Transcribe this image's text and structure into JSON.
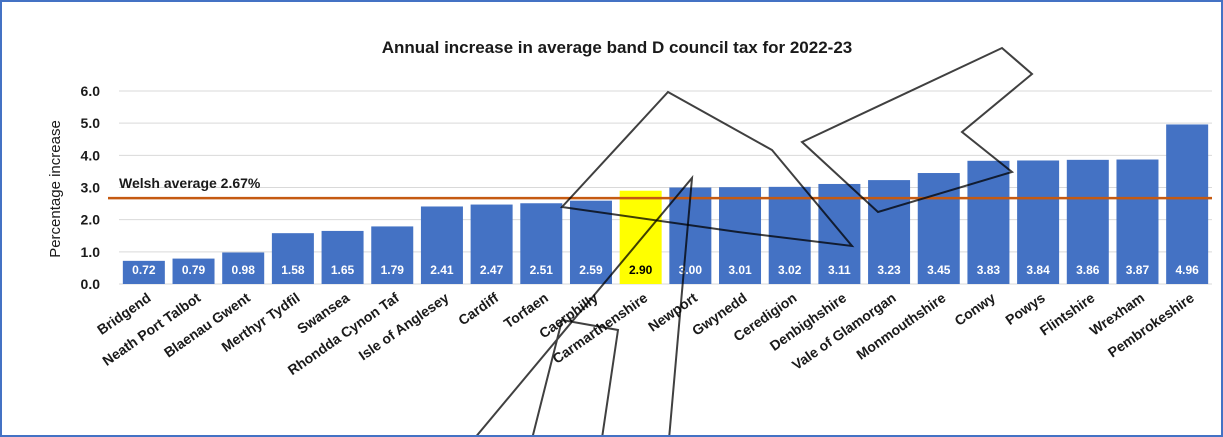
{
  "chart_data": {
    "type": "bar",
    "title": "Annual increase in average band D council tax for 2022-23",
    "ylabel": "Percentage increase",
    "xlabel": "",
    "ylim": [
      0,
      6
    ],
    "yticks": [
      "0.0",
      "1.0",
      "2.0",
      "3.0",
      "4.0",
      "5.0",
      "6.0"
    ],
    "grid": true,
    "categories": [
      "Bridgend",
      "Neath Port Talbot",
      "Blaenau Gwent",
      "Merthyr Tydfil",
      "Swansea",
      "Rhondda Cynon Taf",
      "Isle of Anglesey",
      "Cardiff",
      "Torfaen",
      "Caerphilly",
      "Carmarthenshire",
      "Newport",
      "Gwynedd",
      "Ceredigion",
      "Denbighshire",
      "Vale of Glamorgan",
      "Monmouthshire",
      "Conwy",
      "Powys",
      "Flintshire",
      "Wrexham",
      "Pembrokeshire"
    ],
    "values": [
      0.72,
      0.79,
      0.98,
      1.58,
      1.65,
      1.79,
      2.41,
      2.47,
      2.51,
      2.59,
      2.9,
      3.0,
      3.01,
      3.02,
      3.11,
      3.23,
      3.45,
      3.83,
      3.84,
      3.86,
      3.87,
      4.96
    ],
    "data_labels": [
      "0.72",
      "0.79",
      "0.98",
      "1.58",
      "1.65",
      "1.79",
      "2.41",
      "2.47",
      "2.51",
      "2.59",
      "2.90",
      "3.00",
      "3.01",
      "3.02",
      "3.11",
      "3.23",
      "3.45",
      "3.83",
      "3.84",
      "3.86",
      "3.87",
      "4.96"
    ],
    "highlight_category": "Carmarthenshire",
    "reference_line": {
      "value": 2.67,
      "label": "Welsh average 2.67%"
    },
    "colors": {
      "bar": "#4472c4",
      "highlight": "#ffff00",
      "reference_line": "#c55a11",
      "grid": "#d9d9d9"
    }
  }
}
